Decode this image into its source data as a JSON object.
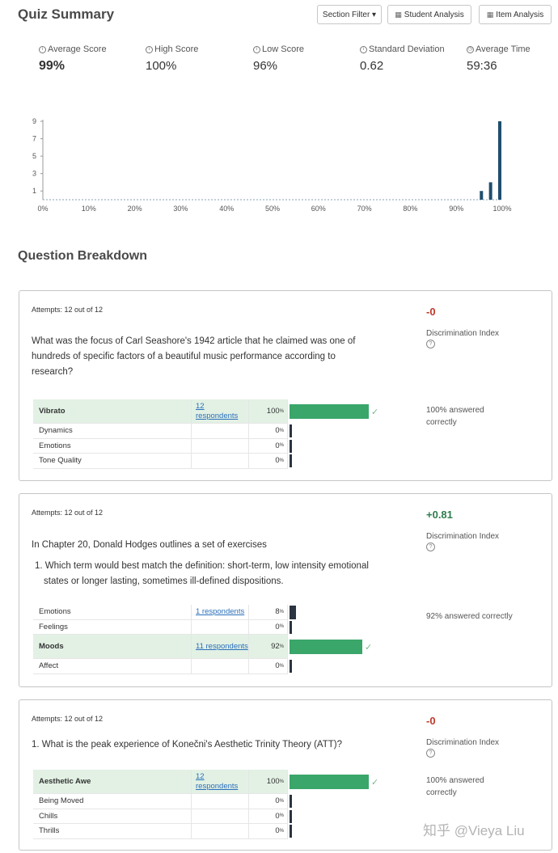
{
  "header": {
    "title": "Quiz Summary",
    "buttons": {
      "section_filter": "Section Filter ▾",
      "student_analysis": "Student Analysis",
      "item_analysis": "Item Analysis"
    }
  },
  "stats": [
    {
      "label": "Average Score",
      "value": "99%"
    },
    {
      "label": "High Score",
      "value": "100%"
    },
    {
      "label": "Low Score",
      "value": "96%"
    },
    {
      "label": "Standard Deviation",
      "value": "0.62"
    },
    {
      "label": "Average Time",
      "value": "59:36"
    }
  ],
  "chart_data": {
    "type": "bar",
    "title": "",
    "xlabel": "",
    "ylabel": "",
    "x_ticks": [
      "0%",
      "10%",
      "20%",
      "30%",
      "40%",
      "50%",
      "60%",
      "70%",
      "80%",
      "90%",
      "100%"
    ],
    "y_ticks": [
      "1",
      "3",
      "5",
      "7",
      "9"
    ],
    "ylim": [
      0,
      9
    ],
    "xlim": [
      0,
      100
    ],
    "bars": [
      {
        "x": 96,
        "value": 1
      },
      {
        "x": 98,
        "value": 2
      },
      {
        "x": 100,
        "value": 9
      }
    ],
    "grid": false,
    "color": "#1f4e6e"
  },
  "breakdown_title": "Question Breakdown",
  "questions": [
    {
      "attempts": "Attempts: 12 out of 12",
      "text": "What was the focus of Carl Seashore's 1942 article that he claimed was one of hundreds of specific factors of a beautiful music performance according to research?",
      "score": "-0",
      "disc_label": "Discrimination Index",
      "pct_note": "100% answered correctly",
      "answers": [
        {
          "label": "Vibrato",
          "respondents": "12 respondents",
          "pct": "100",
          "value": 100,
          "correct": true
        },
        {
          "label": "Dynamics",
          "respondents": "",
          "pct": "0",
          "value": 0,
          "correct": false
        },
        {
          "label": "Emotions",
          "respondents": "",
          "pct": "0",
          "value": 0,
          "correct": false
        },
        {
          "label": "Tone Quality",
          "respondents": "",
          "pct": "0",
          "value": 0,
          "correct": false
        }
      ]
    },
    {
      "attempts": "Attempts: 12 out of 12",
      "text": "In Chapter 20, Donald Hodges outlines a set of exercises",
      "subtext": "1. Which term would best match the definition: short-term, low intensity emotional states or longer lasting, sometimes ill-defined dispositions.",
      "score": "+0.81",
      "disc_label": "Discrimination Index",
      "pct_note": "92% answered correctly",
      "answers": [
        {
          "label": "Emotions",
          "respondents": "1 respondents",
          "pct": "8",
          "value": 8,
          "correct": false
        },
        {
          "label": "Feelings",
          "respondents": "",
          "pct": "0",
          "value": 0,
          "correct": false
        },
        {
          "label": "Moods",
          "respondents": "11 respondents",
          "pct": "92",
          "value": 92,
          "correct": true
        },
        {
          "label": "Affect",
          "respondents": "",
          "pct": "0",
          "value": 0,
          "correct": false
        }
      ]
    },
    {
      "attempts": "Attempts: 12 out of 12",
      "text": "1. What is the peak experience of Konečni's Aesthetic Trinity Theory (ATT)?",
      "score": "-0",
      "disc_label": "Discrimination Index",
      "pct_note": "100% answered correctly",
      "answers": [
        {
          "label": "Aesthetic Awe",
          "respondents": "12 respondents",
          "pct": "100",
          "value": 100,
          "correct": true
        },
        {
          "label": "Being Moved",
          "respondents": "",
          "pct": "0",
          "value": 0,
          "correct": false
        },
        {
          "label": "Chills",
          "respondents": "",
          "pct": "0",
          "value": 0,
          "correct": false
        },
        {
          "label": "Thrills",
          "respondents": "",
          "pct": "0",
          "value": 0,
          "correct": false
        }
      ]
    }
  ],
  "watermark": "知乎 @Vieya Liu",
  "colors": {
    "correct_bar": "#3aa66a",
    "wrong_bar": "#2b3440",
    "correct_bg": "#e2f1e4"
  }
}
